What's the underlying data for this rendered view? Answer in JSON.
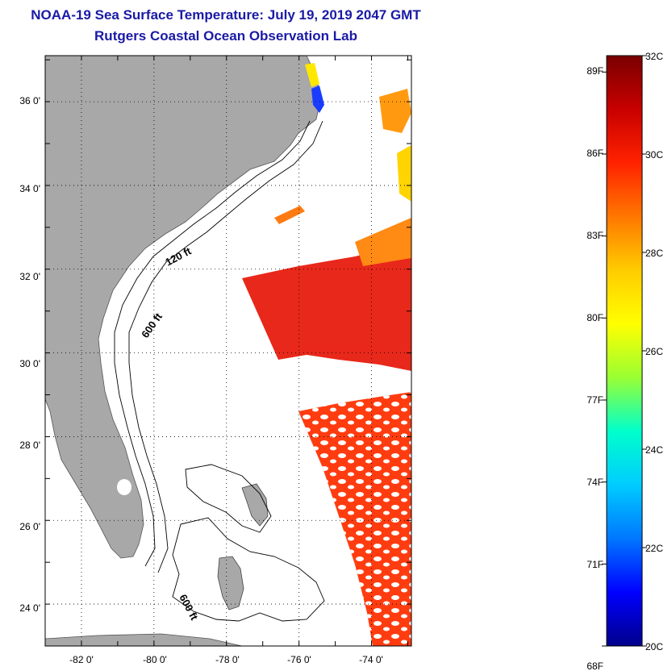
{
  "title": {
    "line1": "NOAA-19 Sea Surface Temperature:  July 19, 2019 2047 GMT",
    "line2": "Rutgers Coastal Ocean Observation Lab"
  },
  "map": {
    "lon_range": [
      -83.0,
      -72.9
    ],
    "lat_range": [
      23.0,
      37.1
    ],
    "lon_labels": [
      "-82 0'",
      "-80 0'",
      "-78 0'",
      "-76 0'",
      "-74 0'"
    ],
    "lat_labels": [
      "36 0'",
      "34 0'",
      "32 0'",
      "30 0'",
      "28 0'",
      "26 0'",
      "24 0'"
    ],
    "contour_labels": [
      "120 ft",
      "600 ft",
      "600 ft"
    ],
    "land_color": "#a8a8a8",
    "ocean_color": "#ffffff"
  },
  "colorbar": {
    "min_c": 20,
    "max_c": 32,
    "celsius_labels": [
      "32C",
      "30C",
      "28C",
      "26C",
      "24C",
      "22C",
      "20C"
    ],
    "fahrenheit_labels": [
      "89F",
      "86F",
      "83F",
      "80F",
      "77F",
      "74F",
      "71F",
      "68F"
    ],
    "stops": [
      "#7a0000",
      "#c80000",
      "#ff2200",
      "#ff7700",
      "#ffcc00",
      "#ffff00",
      "#99ff33",
      "#00ffcc",
      "#00ccff",
      "#0077ff",
      "#0000ff",
      "#00008b"
    ]
  }
}
